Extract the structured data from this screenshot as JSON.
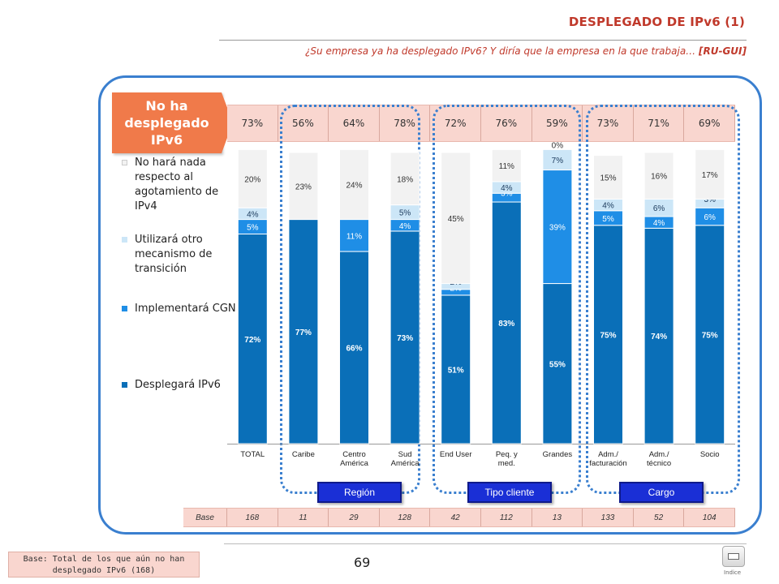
{
  "header": {
    "title": "DESPLEGADO DE IPv6 (1)",
    "subtitle_italic": "¿Su empresa ya ha desplegado IPv6? Y diría que la empresa en la que trabaja… ",
    "subtitle_bold": "[RU-GUI]"
  },
  "tag": {
    "label": "No ha desplegado IPv6"
  },
  "colors": {
    "deploy": "#0a6fb8",
    "cgn": "#1f8ee6",
    "other": "#cce6f7",
    "nothing": "#f2f2f2",
    "frame": "#3a7fcf",
    "accent": "#c0392b",
    "strip": "#f9d6cf",
    "tag": "#f07a4a",
    "button": "#1a2fd6"
  },
  "chart_data": {
    "type": "bar",
    "stacked": true,
    "ylim": [
      0,
      100
    ],
    "categories": [
      "TOTAL",
      "Caribe",
      "Centro América",
      "Sud América",
      "End User",
      "Peq. y med.",
      "Grandes",
      "Adm./ facturación",
      "Adm./ técnico",
      "Socio"
    ],
    "category_labels": [
      [
        "TOTAL"
      ],
      [
        "Caribe"
      ],
      [
        "Centro",
        "América"
      ],
      [
        "Sud",
        "América"
      ],
      [
        "End User"
      ],
      [
        "Peq. y",
        "med."
      ],
      [
        "Grandes"
      ],
      [
        "Adm./",
        "facturación"
      ],
      [
        "Adm./",
        "técnico"
      ],
      [
        "Socio"
      ]
    ],
    "top_percentages": [
      "73%",
      "56%",
      "64%",
      "78%",
      "72%",
      "76%",
      "59%",
      "73%",
      "71%",
      "69%"
    ],
    "series": [
      {
        "name": "Desplegará IPv6",
        "values": [
          72,
          77,
          66,
          73,
          51,
          83,
          55,
          75,
          74,
          75
        ]
      },
      {
        "name": "Implementará CGN",
        "values": [
          5,
          0,
          11,
          4,
          2,
          3,
          39,
          5,
          4,
          6
        ]
      },
      {
        "name": "Utilizará otro mecanismo de transición",
        "values": [
          4,
          0,
          0,
          5,
          2,
          4,
          7,
          4,
          6,
          3
        ]
      },
      {
        "name": "No hará nada respecto al agotamiento de IPv4",
        "values": [
          20,
          23,
          24,
          18,
          45,
          11,
          0,
          15,
          16,
          17
        ]
      }
    ],
    "legend": {
      "position": "left",
      "order": [
        "No hará nada respecto al agotamiento de IPv4",
        "Utilizará otro mecanismo de transición",
        "Implementará CGN",
        "Desplegará IPv6"
      ]
    }
  },
  "groups": [
    {
      "label": "Región"
    },
    {
      "label": "Tipo cliente"
    },
    {
      "label": "Cargo"
    }
  ],
  "base": {
    "label": "Base",
    "values": [
      "168",
      "11",
      "29",
      "128",
      "42",
      "112",
      "13",
      "133",
      "52",
      "104"
    ]
  },
  "footer": {
    "page_number": "69",
    "base_note": "Base:  Total de los que aún no han desplegado IPv6 (168)",
    "index_label": "Indice"
  }
}
